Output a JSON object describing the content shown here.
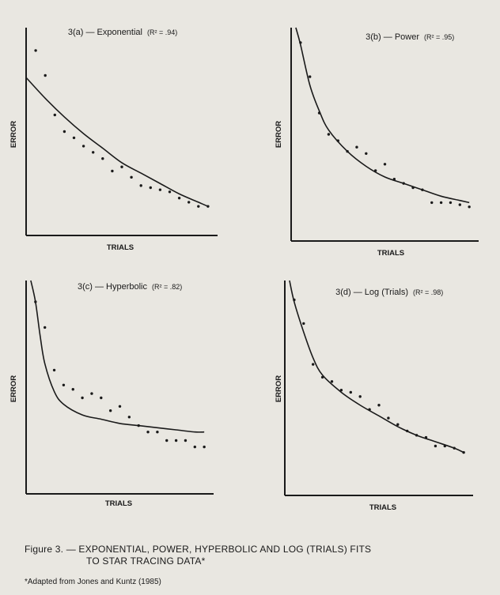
{
  "colors": {
    "background": "#e9e7e1",
    "ink": "#1a1a1a"
  },
  "chart_data": [
    {
      "type": "scatter",
      "title": "3(a) — Exponential",
      "r2": "(R² = .94)",
      "xlabel": "TRIALS",
      "ylabel": "ERROR",
      "fit": "exponential",
      "xlim": [
        0,
        20
      ],
      "ylim": [
        0,
        1
      ],
      "points": [
        [
          1,
          0.89
        ],
        [
          2,
          0.77
        ],
        [
          3,
          0.58
        ],
        [
          4,
          0.5
        ],
        [
          5,
          0.47
        ],
        [
          6,
          0.43
        ],
        [
          7,
          0.4
        ],
        [
          8,
          0.37
        ],
        [
          9,
          0.31
        ],
        [
          10,
          0.33
        ],
        [
          11,
          0.28
        ],
        [
          12,
          0.24
        ],
        [
          13,
          0.23
        ],
        [
          14,
          0.22
        ],
        [
          15,
          0.21
        ],
        [
          16,
          0.18
        ],
        [
          17,
          0.16
        ],
        [
          18,
          0.14
        ],
        [
          19,
          0.14
        ]
      ],
      "fit_line": [
        [
          0,
          0.76
        ],
        [
          2,
          0.66
        ],
        [
          4,
          0.57
        ],
        [
          6,
          0.49
        ],
        [
          8,
          0.42
        ],
        [
          10,
          0.35
        ],
        [
          12,
          0.3
        ],
        [
          14,
          0.25
        ],
        [
          16,
          0.2
        ],
        [
          18,
          0.16
        ],
        [
          19,
          0.14
        ]
      ]
    },
    {
      "type": "scatter",
      "title": "3(b) — Power",
      "r2": "(R² = .95)",
      "xlabel": "TRIALS",
      "ylabel": "ERROR",
      "fit": "power",
      "xlim": [
        0,
        20
      ],
      "ylim": [
        0,
        1
      ],
      "points": [
        [
          1,
          0.93
        ],
        [
          2,
          0.77
        ],
        [
          3,
          0.6
        ],
        [
          4,
          0.5
        ],
        [
          5,
          0.47
        ],
        [
          6,
          0.42
        ],
        [
          7,
          0.44
        ],
        [
          8,
          0.41
        ],
        [
          9,
          0.33
        ],
        [
          10,
          0.36
        ],
        [
          11,
          0.29
        ],
        [
          12,
          0.27
        ],
        [
          13,
          0.25
        ],
        [
          14,
          0.24
        ],
        [
          15,
          0.18
        ],
        [
          16,
          0.18
        ],
        [
          17,
          0.18
        ],
        [
          18,
          0.17
        ],
        [
          19,
          0.16
        ]
      ],
      "fit_line": [
        [
          0.5,
          1.0
        ],
        [
          1,
          0.92
        ],
        [
          2,
          0.73
        ],
        [
          3,
          0.61
        ],
        [
          4,
          0.52
        ],
        [
          6,
          0.42
        ],
        [
          8,
          0.35
        ],
        [
          10,
          0.3
        ],
        [
          12,
          0.27
        ],
        [
          14,
          0.24
        ],
        [
          16,
          0.21
        ],
        [
          18,
          0.19
        ],
        [
          19,
          0.18
        ]
      ]
    },
    {
      "type": "scatter",
      "title": "3(c) — Hyperbolic",
      "r2": "(R² = .82)",
      "xlabel": "TRIALS",
      "ylabel": "ERROR",
      "fit": "hyperbolic",
      "xlim": [
        0,
        20
      ],
      "ylim": [
        0,
        1
      ],
      "points": [
        [
          1,
          0.9
        ],
        [
          2,
          0.78
        ],
        [
          3,
          0.58
        ],
        [
          4,
          0.51
        ],
        [
          5,
          0.49
        ],
        [
          6,
          0.45
        ],
        [
          7,
          0.47
        ],
        [
          8,
          0.45
        ],
        [
          9,
          0.39
        ],
        [
          10,
          0.41
        ],
        [
          11,
          0.36
        ],
        [
          12,
          0.32
        ],
        [
          13,
          0.29
        ],
        [
          14,
          0.29
        ],
        [
          15,
          0.25
        ],
        [
          16,
          0.25
        ],
        [
          17,
          0.25
        ],
        [
          18,
          0.22
        ],
        [
          19,
          0.22
        ]
      ],
      "fit_line": [
        [
          0.5,
          1.0
        ],
        [
          1,
          0.9
        ],
        [
          1.5,
          0.74
        ],
        [
          2,
          0.61
        ],
        [
          3,
          0.48
        ],
        [
          4,
          0.42
        ],
        [
          6,
          0.37
        ],
        [
          8,
          0.35
        ],
        [
          10,
          0.33
        ],
        [
          12,
          0.32
        ],
        [
          14,
          0.31
        ],
        [
          16,
          0.3
        ],
        [
          18,
          0.29
        ],
        [
          19,
          0.29
        ]
      ]
    },
    {
      "type": "scatter",
      "title": "3(d) — Log (Trials)",
      "r2": "(R² = .98)",
      "xlabel": "TRIALS",
      "ylabel": "ERROR",
      "fit": "log (trials)",
      "xlim": [
        0,
        20
      ],
      "ylim": [
        0,
        1
      ],
      "points": [
        [
          1,
          0.91
        ],
        [
          2,
          0.8
        ],
        [
          3,
          0.61
        ],
        [
          4,
          0.55
        ],
        [
          5,
          0.53
        ],
        [
          6,
          0.49
        ],
        [
          7,
          0.48
        ],
        [
          8,
          0.46
        ],
        [
          9,
          0.4
        ],
        [
          10,
          0.42
        ],
        [
          11,
          0.36
        ],
        [
          12,
          0.33
        ],
        [
          13,
          0.3
        ],
        [
          14,
          0.28
        ],
        [
          15,
          0.27
        ],
        [
          16,
          0.23
        ],
        [
          17,
          0.23
        ],
        [
          18,
          0.22
        ],
        [
          19,
          0.2
        ]
      ],
      "fit_line": [
        [
          0.5,
          1.0
        ],
        [
          1,
          0.9
        ],
        [
          2,
          0.76
        ],
        [
          3,
          0.64
        ],
        [
          4,
          0.56
        ],
        [
          6,
          0.48
        ],
        [
          8,
          0.42
        ],
        [
          10,
          0.37
        ],
        [
          12,
          0.32
        ],
        [
          14,
          0.28
        ],
        [
          16,
          0.25
        ],
        [
          18,
          0.22
        ],
        [
          19,
          0.2
        ]
      ]
    }
  ],
  "caption": {
    "line1": "Figure 3. — EXPONENTIAL, POWER, HYPERBOLIC AND LOG (TRIALS) FITS",
    "line2": "TO STAR TRACING DATA*"
  },
  "footnote": "*Adapted from Jones and Kuntz (1985)"
}
